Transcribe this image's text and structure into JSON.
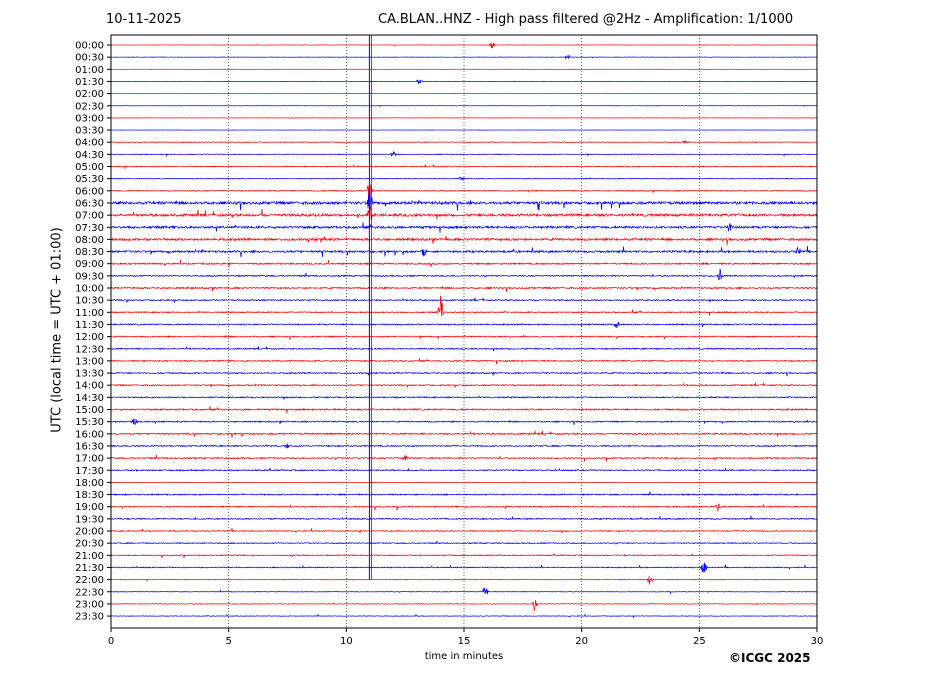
{
  "header": {
    "date": "10-11-2025",
    "title": "CA.BLAN..HNZ - High pass filtered @2Hz - Amplification: 1/1000"
  },
  "footer": {
    "copyright": "©ICGC 2025"
  },
  "chart_data": {
    "type": "line",
    "title": "CA.BLAN..HNZ - High pass filtered @2Hz - Amplification: 1/1000",
    "xlabel": "time in minutes",
    "ylabel": "UTC (local time = UTC + 01:00)",
    "xlim": [
      0,
      30
    ],
    "x_ticks": [
      0,
      5,
      10,
      15,
      20,
      25,
      30
    ],
    "grid": "vertical dotted at 5-minute intervals",
    "trace_colors": [
      "#ff0000",
      "#0000ff"
    ],
    "rows": [
      "00:00",
      "00:30",
      "01:00",
      "01:30",
      "02:00",
      "02:30",
      "03:00",
      "03:30",
      "04:00",
      "04:30",
      "05:00",
      "05:30",
      "06:00",
      "06:30",
      "07:00",
      "07:30",
      "08:00",
      "08:30",
      "09:00",
      "09:30",
      "10:00",
      "10:30",
      "11:00",
      "11:30",
      "12:00",
      "12:30",
      "13:00",
      "13:30",
      "14:00",
      "14:30",
      "15:00",
      "15:30",
      "16:00",
      "16:30",
      "17:00",
      "17:30",
      "18:00",
      "18:30",
      "19:00",
      "19:30",
      "20:00",
      "20:30",
      "21:00",
      "21:30",
      "22:00",
      "22:30",
      "23:00",
      "23:30"
    ],
    "noise_level": [
      0.3,
      0.3,
      0.2,
      0.3,
      0.2,
      0.3,
      0.3,
      0.2,
      0.6,
      0.6,
      0.8,
      0.6,
      0.8,
      2.2,
      2.0,
      1.8,
      1.8,
      1.6,
      1.2,
      1.0,
      1.2,
      1.0,
      1.0,
      1.0,
      1.0,
      1.0,
      1.0,
      1.0,
      1.0,
      1.0,
      1.2,
      1.0,
      1.2,
      1.0,
      1.0,
      1.0,
      0.2,
      1.0,
      1.0,
      1.0,
      0.8,
      0.8,
      0.8,
      0.8,
      0.5,
      0.5,
      0.5,
      0.5
    ],
    "events": [
      {
        "row": "00:00",
        "minute": 16.2,
        "amp": 4
      },
      {
        "row": "00:30",
        "minute": 19.4,
        "amp": 3
      },
      {
        "row": "01:30",
        "minute": 13.1,
        "amp": 4
      },
      {
        "row": "04:00",
        "minute": 24.4,
        "amp": 3
      },
      {
        "row": "04:30",
        "minute": 12.0,
        "amp": 4
      },
      {
        "row": "05:30",
        "minute": 14.9,
        "amp": 3
      },
      {
        "row": "06:00",
        "minute": 11.0,
        "amp": 12
      },
      {
        "row": "06:30",
        "minute": 11.0,
        "amp": 14
      },
      {
        "row": "07:00",
        "minute": 11.0,
        "amp": 12
      },
      {
        "row": "07:30",
        "minute": 26.3,
        "amp": 6
      },
      {
        "row": "08:30",
        "minute": 13.3,
        "amp": 6
      },
      {
        "row": "08:30",
        "minute": 29.2,
        "amp": 5
      },
      {
        "row": "09:30",
        "minute": 25.9,
        "amp": 8
      },
      {
        "row": "11:00",
        "minute": 14.0,
        "amp": 18
      },
      {
        "row": "11:30",
        "minute": 21.5,
        "amp": 4
      },
      {
        "row": "15:30",
        "minute": 1.0,
        "amp": 5
      },
      {
        "row": "16:30",
        "minute": 7.5,
        "amp": 3
      },
      {
        "row": "17:00",
        "minute": 12.5,
        "amp": 4
      },
      {
        "row": "19:00",
        "minute": 25.8,
        "amp": 5
      },
      {
        "row": "21:30",
        "minute": 25.2,
        "amp": 8
      },
      {
        "row": "22:00",
        "minute": 22.9,
        "amp": 6
      },
      {
        "row": "22:30",
        "minute": 15.9,
        "amp": 8
      },
      {
        "row": "23:00",
        "minute": 18.0,
        "amp": 7
      }
    ],
    "continuous_signal": {
      "minute": 10.98,
      "from_row": "00:00",
      "to_row": "22:00",
      "color": "#0000ff"
    }
  }
}
